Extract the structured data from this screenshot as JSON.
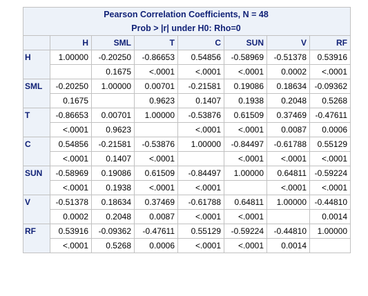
{
  "title": {
    "line1": "Pearson Correlation Coefficients, N = 48",
    "line2": "Prob > |r| under H0: Rho=0"
  },
  "columns": [
    "H",
    "SML",
    "T",
    "C",
    "SUN",
    "V",
    "RF"
  ],
  "rows": [
    {
      "label": "H",
      "coef": [
        "1.00000",
        "-0.20250",
        "-0.86653",
        "0.54856",
        "-0.58969",
        "-0.51378",
        "0.53916"
      ],
      "prob": [
        "",
        "0.1675",
        "<.0001",
        "<.0001",
        "<.0001",
        "0.0002",
        "<.0001"
      ]
    },
    {
      "label": "SML",
      "coef": [
        "-0.20250",
        "1.00000",
        "0.00701",
        "-0.21581",
        "0.19086",
        "0.18634",
        "-0.09362"
      ],
      "prob": [
        "0.1675",
        "",
        "0.9623",
        "0.1407",
        "0.1938",
        "0.2048",
        "0.5268"
      ]
    },
    {
      "label": "T",
      "coef": [
        "-0.86653",
        "0.00701",
        "1.00000",
        "-0.53876",
        "0.61509",
        "0.37469",
        "-0.47611"
      ],
      "prob": [
        "<.0001",
        "0.9623",
        "",
        "<.0001",
        "<.0001",
        "0.0087",
        "0.0006"
      ]
    },
    {
      "label": "C",
      "coef": [
        "0.54856",
        "-0.21581",
        "-0.53876",
        "1.00000",
        "-0.84497",
        "-0.61788",
        "0.55129"
      ],
      "prob": [
        "<.0001",
        "0.1407",
        "<.0001",
        "",
        "<.0001",
        "<.0001",
        "<.0001"
      ]
    },
    {
      "label": "SUN",
      "coef": [
        "-0.58969",
        "0.19086",
        "0.61509",
        "-0.84497",
        "1.00000",
        "0.64811",
        "-0.59224"
      ],
      "prob": [
        "<.0001",
        "0.1938",
        "<.0001",
        "<.0001",
        "",
        "<.0001",
        "<.0001"
      ]
    },
    {
      "label": "V",
      "coef": [
        "-0.51378",
        "0.18634",
        "0.37469",
        "-0.61788",
        "0.64811",
        "1.00000",
        "-0.44810"
      ],
      "prob": [
        "0.0002",
        "0.2048",
        "0.0087",
        "<.0001",
        "<.0001",
        "",
        "0.0014"
      ]
    },
    {
      "label": "RF",
      "coef": [
        "0.53916",
        "-0.09362",
        "-0.47611",
        "0.55129",
        "-0.59224",
        "-0.44810",
        "1.00000"
      ],
      "prob": [
        "<.0001",
        "0.5268",
        "0.0006",
        "<.0001",
        "<.0001",
        "0.0014",
        ""
      ]
    }
  ],
  "colors": {
    "header_bg": "#edf2f9",
    "header_text": "#112277",
    "grid": "#c1c1c1"
  }
}
